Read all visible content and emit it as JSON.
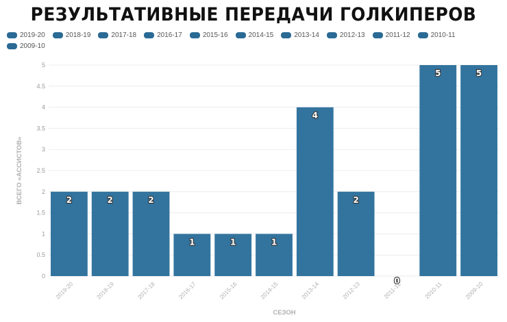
{
  "chart_data": {
    "type": "bar",
    "title": "РЕЗУЛЬТАТИВНЫЕ ПЕРЕДАЧИ ГОЛКИПЕРОВ",
    "xlabel": "СЕЗОН",
    "ylabel": "ВСЕГО «АССИСТОВ»",
    "categories": [
      "2019-20",
      "2018-19",
      "2017-18",
      "2016-17",
      "2015-16",
      "2014-15",
      "2013-14",
      "2012-13",
      "2011-12",
      "2010-11",
      "2009-10"
    ],
    "values": [
      2,
      2,
      2,
      1,
      1,
      1,
      4,
      2,
      0,
      5,
      5
    ],
    "ylim": [
      0,
      5
    ],
    "yticks": [
      "0",
      "0.5",
      "1",
      "1.5",
      "2",
      "2.5",
      "3",
      "3.5",
      "4",
      "4.5",
      "5"
    ],
    "grid": true,
    "legend_position": "top-left",
    "bar_color": "#33749f",
    "legend_color": "#2a6a95",
    "legend": [
      "2019-20",
      "2018-19",
      "2017-18",
      "2016-17",
      "2015-16",
      "2014-15",
      "2013-14",
      "2012-13",
      "2011-12",
      "2010-11",
      "2009-10"
    ]
  }
}
